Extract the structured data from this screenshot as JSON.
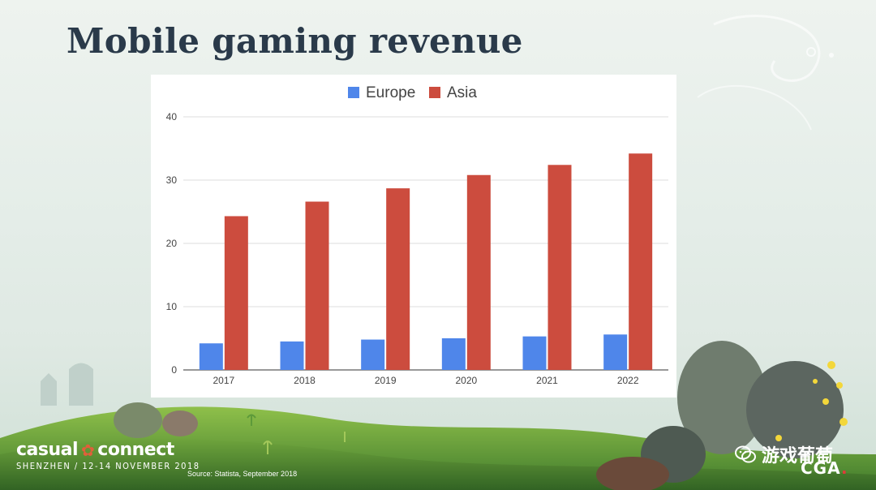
{
  "slide": {
    "title": "Mobile gaming revenue",
    "source": "Source: Statista, September 2018"
  },
  "branding": {
    "event_name_left": "casual",
    "event_name_right": "connect",
    "event_subtitle": "SHENZHEN / 12-14 NOVEMBER 2018",
    "wechat_label": "游戏葡萄",
    "cga": "CGA",
    "cga_dot": "."
  },
  "colors": {
    "europe": "#4f86ea",
    "asia": "#cc4c3e",
    "grid": "#dddddd",
    "axis": "#333333",
    "tick_text": "#444444"
  },
  "chart_data": {
    "type": "bar",
    "categories": [
      "2017",
      "2018",
      "2019",
      "2020",
      "2021",
      "2022"
    ],
    "series": [
      {
        "name": "Europe",
        "values": [
          4.2,
          4.5,
          4.8,
          5.0,
          5.3,
          5.6
        ]
      },
      {
        "name": "Asia",
        "values": [
          24.3,
          26.6,
          28.7,
          30.8,
          32.4,
          34.2
        ]
      }
    ],
    "yticks": [
      0,
      10,
      20,
      30,
      40
    ],
    "ylim": [
      0,
      40
    ],
    "grid": true,
    "legend_position": "top-center",
    "xlabel": "",
    "ylabel": ""
  }
}
